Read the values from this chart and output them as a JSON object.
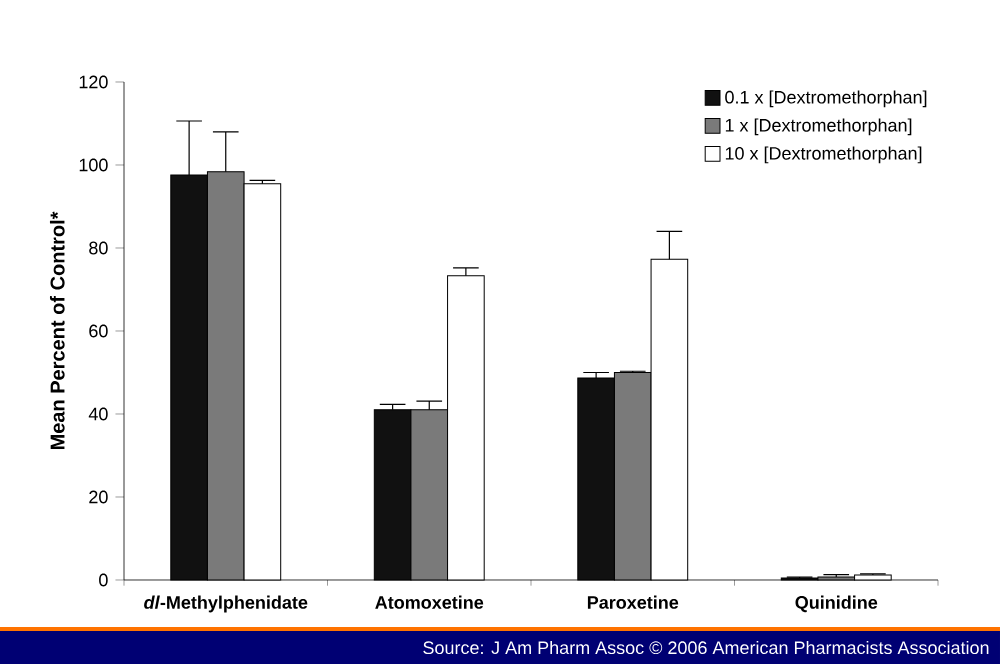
{
  "chart_data": {
    "type": "bar",
    "ylabel": "Mean Percent of Control*",
    "categories": [
      "*dl*-Methylphenidate",
      "Atomoxetine",
      "Paroxetine",
      "Quinidine"
    ],
    "series": [
      {
        "name": "0.1 x [Dextromethorphan]",
        "color": "#111111",
        "values": [
          97.6,
          41,
          48.7,
          0.5
        ],
        "errors": [
          [
            97.6,
            110.6
          ],
          [
            41,
            42.3
          ],
          [
            48.7,
            50
          ],
          [
            0.5,
            0.7
          ]
        ]
      },
      {
        "name": "1 x [Dextromethorphan]",
        "color": "#7a7a7a",
        "values": [
          98.4,
          41,
          50,
          0.7
        ],
        "errors": [
          [
            98.4,
            108
          ],
          [
            41,
            43.1
          ],
          [
            50,
            50.3
          ],
          [
            0.7,
            1.3
          ]
        ]
      },
      {
        "name": "10 x [Dextromethorphan]",
        "color": "#ffffff",
        "values": [
          95.5,
          73.3,
          77.3,
          1.2
        ],
        "errors": [
          [
            95.5,
            96.3
          ],
          [
            73.3,
            75.2
          ],
          [
            77.3,
            84
          ],
          [
            1.2,
            1.5
          ]
        ]
      }
    ],
    "ylim": [
      0,
      120
    ],
    "yticks": [
      0,
      20,
      40,
      60,
      80,
      100,
      120
    ],
    "legend": "top right",
    "annotations": [
      "Source:  J Am Pharm Assoc © 2006 American Pharmacists Association"
    ]
  }
}
